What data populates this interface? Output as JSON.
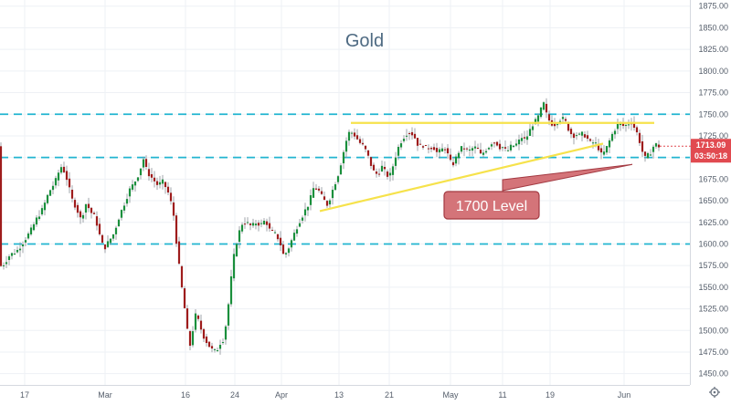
{
  "chart_data": {
    "type": "candlestick",
    "title": "Gold",
    "y_axis": {
      "ticks": [
        1450,
        1475,
        1500,
        1525,
        1550,
        1575,
        1600,
        1625,
        1650,
        1675,
        1700,
        1725,
        1750,
        1775,
        1800,
        1825,
        1850,
        1875
      ],
      "tick_labels": [
        "1450.00",
        "1475.00",
        "1500.00",
        "1525.00",
        "1550.00",
        "1575.00",
        "1600.00",
        "1625.00",
        "1650.00",
        "1675.00",
        "1700.00",
        "1725.00",
        "1750.00",
        "1775.00",
        "1800.00",
        "1825.00",
        "1850.00",
        "1875.00"
      ],
      "ylim": [
        1437,
        1880
      ],
      "position": "right"
    },
    "x_axis": {
      "tick_labels": [
        "17",
        "Mar",
        "16",
        "24",
        "Apr",
        "13",
        "21",
        "May",
        "11",
        "19",
        "Jun"
      ]
    },
    "price_path": [
      [
        0,
        1573
      ],
      [
        5,
        1576
      ],
      [
        12,
        1587
      ],
      [
        20,
        1592
      ],
      [
        28,
        1604
      ],
      [
        35,
        1615
      ],
      [
        42,
        1630
      ],
      [
        48,
        1640
      ],
      [
        55,
        1660
      ],
      [
        62,
        1672
      ],
      [
        68,
        1690
      ],
      [
        73,
        1682
      ],
      [
        80,
        1652
      ],
      [
        85,
        1642
      ],
      [
        90,
        1628
      ],
      [
        96,
        1648
      ],
      [
        100,
        1638
      ],
      [
        106,
        1630
      ],
      [
        110,
        1612
      ],
      [
        115,
        1594
      ],
      [
        120,
        1602
      ],
      [
        126,
        1612
      ],
      [
        132,
        1632
      ],
      [
        138,
        1648
      ],
      [
        143,
        1662
      ],
      [
        148,
        1670
      ],
      [
        152,
        1678
      ],
      [
        156,
        1690
      ],
      [
        159,
        1700
      ],
      [
        162,
        1684
      ],
      [
        168,
        1676
      ],
      [
        174,
        1668
      ],
      [
        180,
        1672
      ],
      [
        186,
        1658
      ],
      [
        191,
        1638
      ],
      [
        195,
        1598
      ],
      [
        199,
        1560
      ],
      [
        203,
        1530
      ],
      [
        206,
        1503
      ],
      [
        209,
        1480
      ],
      [
        212,
        1498
      ],
      [
        216,
        1520
      ],
      [
        220,
        1506
      ],
      [
        224,
        1494
      ],
      [
        228,
        1486
      ],
      [
        233,
        1478
      ],
      [
        238,
        1475
      ],
      [
        242,
        1485
      ],
      [
        246,
        1490
      ],
      [
        250,
        1515
      ],
      [
        254,
        1556
      ],
      [
        258,
        1590
      ],
      [
        262,
        1610
      ],
      [
        267,
        1625
      ],
      [
        272,
        1624
      ],
      [
        277,
        1620
      ],
      [
        282,
        1625
      ],
      [
        287,
        1622
      ],
      [
        292,
        1628
      ],
      [
        297,
        1615
      ],
      [
        302,
        1612
      ],
      [
        307,
        1605
      ],
      [
        312,
        1586
      ],
      [
        316,
        1592
      ],
      [
        322,
        1608
      ],
      [
        328,
        1624
      ],
      [
        334,
        1636
      ],
      [
        340,
        1648
      ],
      [
        345,
        1666
      ],
      [
        350,
        1662
      ],
      [
        355,
        1652
      ],
      [
        360,
        1645
      ],
      [
        364,
        1658
      ],
      [
        368,
        1670
      ],
      [
        372,
        1682
      ],
      [
        376,
        1700
      ],
      [
        380,
        1718
      ],
      [
        384,
        1730
      ],
      [
        388,
        1728
      ],
      [
        392,
        1722
      ],
      [
        396,
        1716
      ],
      [
        400,
        1712
      ],
      [
        404,
        1702
      ],
      [
        408,
        1690
      ],
      [
        412,
        1680
      ],
      [
        416,
        1683
      ],
      [
        420,
        1690
      ],
      [
        424,
        1680
      ],
      [
        428,
        1678
      ],
      [
        432,
        1692
      ],
      [
        436,
        1708
      ],
      [
        440,
        1718
      ],
      [
        444,
        1725
      ],
      [
        448,
        1730
      ],
      [
        452,
        1728
      ],
      [
        456,
        1722
      ],
      [
        460,
        1712
      ],
      [
        464,
        1715
      ],
      [
        468,
        1710
      ],
      [
        472,
        1712
      ],
      [
        476,
        1712
      ],
      [
        480,
        1705
      ],
      [
        484,
        1708
      ],
      [
        488,
        1712
      ],
      [
        492,
        1702
      ],
      [
        496,
        1690
      ],
      [
        500,
        1698
      ],
      [
        504,
        1708
      ],
      [
        508,
        1712
      ],
      [
        512,
        1708
      ],
      [
        516,
        1708
      ],
      [
        520,
        1712
      ],
      [
        524,
        1710
      ],
      [
        528,
        1702
      ],
      [
        532,
        1708
      ],
      [
        536,
        1712
      ],
      [
        540,
        1718
      ],
      [
        544,
        1718
      ],
      [
        548,
        1712
      ],
      [
        552,
        1712
      ],
      [
        556,
        1706
      ],
      [
        560,
        1712
      ],
      [
        564,
        1714
      ],
      [
        568,
        1716
      ],
      [
        572,
        1724
      ],
      [
        576,
        1720
      ],
      [
        580,
        1728
      ],
      [
        584,
        1738
      ],
      [
        588,
        1742
      ],
      [
        592,
        1750
      ],
      [
        596,
        1764
      ],
      [
        600,
        1748
      ],
      [
        604,
        1740
      ],
      [
        608,
        1738
      ],
      [
        612,
        1742
      ],
      [
        616,
        1746
      ],
      [
        620,
        1742
      ],
      [
        624,
        1732
      ],
      [
        628,
        1725
      ],
      [
        632,
        1727
      ],
      [
        636,
        1725
      ],
      [
        640,
        1728
      ],
      [
        644,
        1722
      ],
      [
        648,
        1716
      ],
      [
        652,
        1718
      ],
      [
        656,
        1712
      ],
      [
        660,
        1702
      ],
      [
        664,
        1708
      ],
      [
        668,
        1718
      ],
      [
        672,
        1728
      ],
      [
        676,
        1736
      ],
      [
        680,
        1740
      ],
      [
        684,
        1736
      ],
      [
        688,
        1738
      ],
      [
        692,
        1742
      ],
      [
        696,
        1734
      ],
      [
        700,
        1725
      ],
      [
        704,
        1708
      ],
      [
        708,
        1698
      ],
      [
        711,
        1703
      ],
      [
        714,
        1707
      ],
      [
        718,
        1716
      ],
      [
        722,
        1713
      ]
    ],
    "horizontal_levels": [
      1750,
      1700,
      1600
    ],
    "trendlines": [
      {
        "from": [
          384,
          1740
        ],
        "to": [
          716,
          1740
        ]
      },
      {
        "from": [
          350,
          1638
        ],
        "to": [
          660,
          1716
        ]
      }
    ],
    "annotation_arrow": {
      "from": [
        550,
        1668
      ],
      "to": [
        692,
        1692
      ]
    },
    "callout": {
      "text": "1700 Level"
    },
    "last_price": {
      "value": "1713.09",
      "timer": "03:50:18"
    },
    "colors": {
      "up": "#1a8f3c",
      "down": "#9e1c1c",
      "levels": "#22b5d0",
      "trendline": "#f6e24b",
      "callout_fill": "#d47479",
      "callout_stroke": "#a33a42",
      "price_badge": "#e14a50",
      "title": "#4e6a82",
      "grid": "#eef1f5"
    }
  },
  "ui": {
    "settings_icon": "gear-icon"
  }
}
